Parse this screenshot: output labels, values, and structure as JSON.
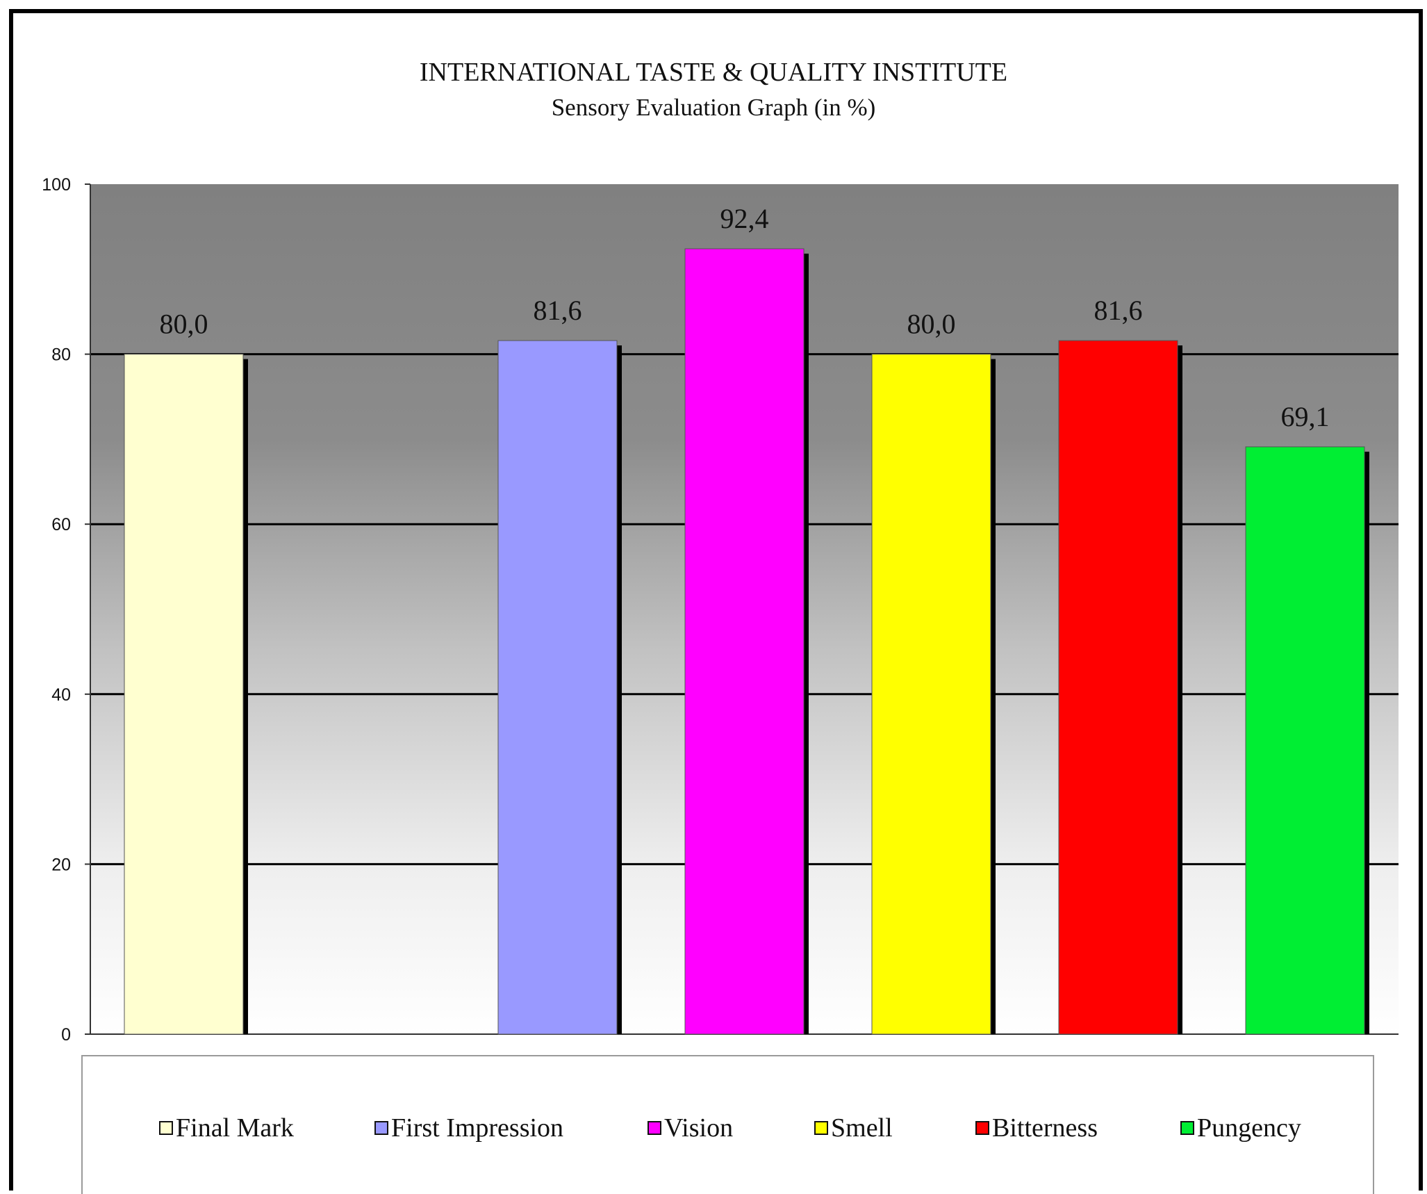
{
  "chart_data": {
    "type": "bar",
    "title": "INTERNATIONAL TASTE & QUALITY INSTITUTE",
    "subtitle": "Sensory Evaluation Graph (in %)",
    "xlabel": "",
    "ylabel": "",
    "ylim": [
      0,
      100
    ],
    "yticks": [
      "0",
      "20",
      "40",
      "60",
      "80",
      "100"
    ],
    "grid": true,
    "legend_position": "bottom",
    "series": [
      {
        "name": "Final Mark",
        "value": 80.0,
        "label": "80,0",
        "color": "#ffffd0"
      },
      {
        "name": "",
        "value": null,
        "label": "",
        "color": ""
      },
      {
        "name": "First Impression",
        "value": 81.6,
        "label": "81,6",
        "color": "#9999ff"
      },
      {
        "name": "Vision",
        "value": 92.4,
        "label": "92,4",
        "color": "#ff00ff"
      },
      {
        "name": "Smell",
        "value": 80.0,
        "label": "80,0",
        "color": "#ffff00"
      },
      {
        "name": "Bitterness",
        "value": 81.6,
        "label": "81,6",
        "color": "#ff0000"
      },
      {
        "name": "Pungency",
        "value": 69.1,
        "label": "69,1",
        "color": "#00ee33"
      }
    ],
    "legend": [
      {
        "name": "Final Mark",
        "color": "#ffffd0"
      },
      {
        "name": "First Impression",
        "color": "#9999ff"
      },
      {
        "name": "Vision",
        "color": "#ff00ff"
      },
      {
        "name": "Smell",
        "color": "#ffff00"
      },
      {
        "name": "Bitterness",
        "color": "#ff0000"
      },
      {
        "name": "Pungency",
        "color": "#00ee33"
      }
    ]
  }
}
